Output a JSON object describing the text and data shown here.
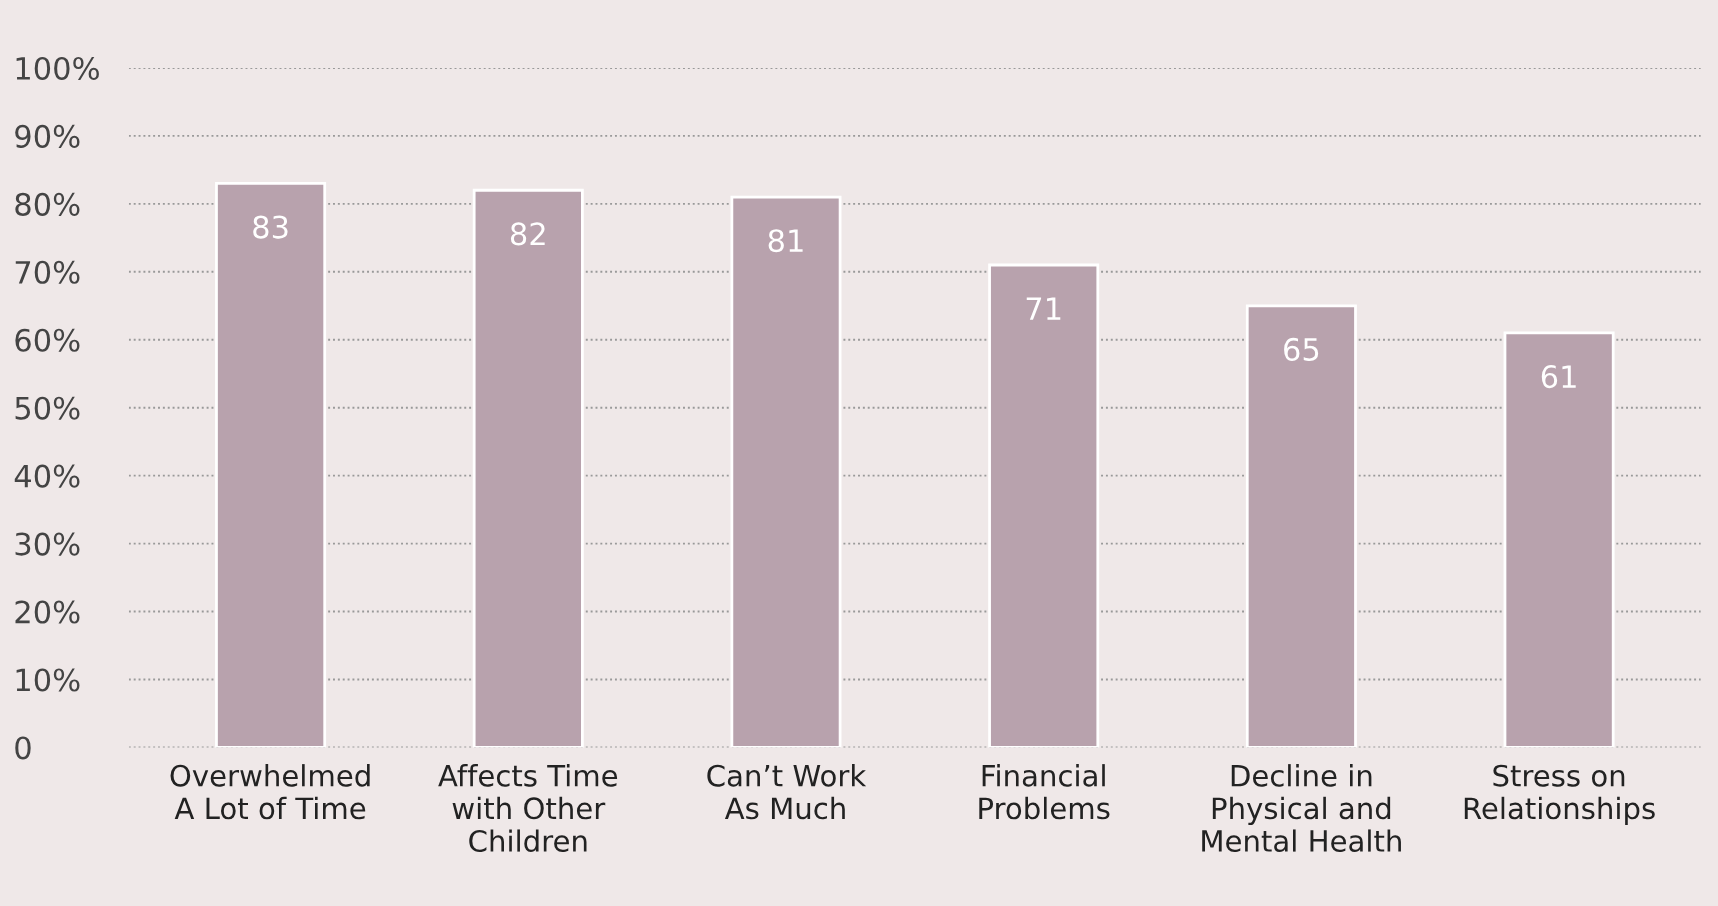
{
  "chart_data": {
    "type": "bar",
    "categories": [
      "Overwhelmed\nA Lot of Time",
      "Affects Time\nwith Other\nChildren",
      "Can’t Work\nAs Much",
      "Financial\nProblems",
      "Decline in\nPhysical and\nMental Health",
      "Stress on\nRelationships"
    ],
    "values": [
      83,
      82,
      81,
      71,
      65,
      61
    ],
    "color": "#b8a2ad",
    "data_labels": true,
    "ylim": [
      0,
      100
    ],
    "yticks": [
      0,
      {
        "value": 10,
        "label": "10%"
      },
      {
        "value": 20,
        "label": "20%"
      },
      {
        "value": 30,
        "label": "30%"
      },
      {
        "value": 40,
        "label": "40%"
      },
      {
        "value": 50,
        "label": "50%"
      },
      {
        "value": 60,
        "label": "60%"
      },
      {
        "value": 70,
        "label": "70%"
      },
      {
        "value": 80,
        "label": "80%"
      },
      {
        "value": 90,
        "label": "90%"
      },
      {
        "value": 100,
        "label": "100%"
      }
    ],
    "grid": "y"
  }
}
